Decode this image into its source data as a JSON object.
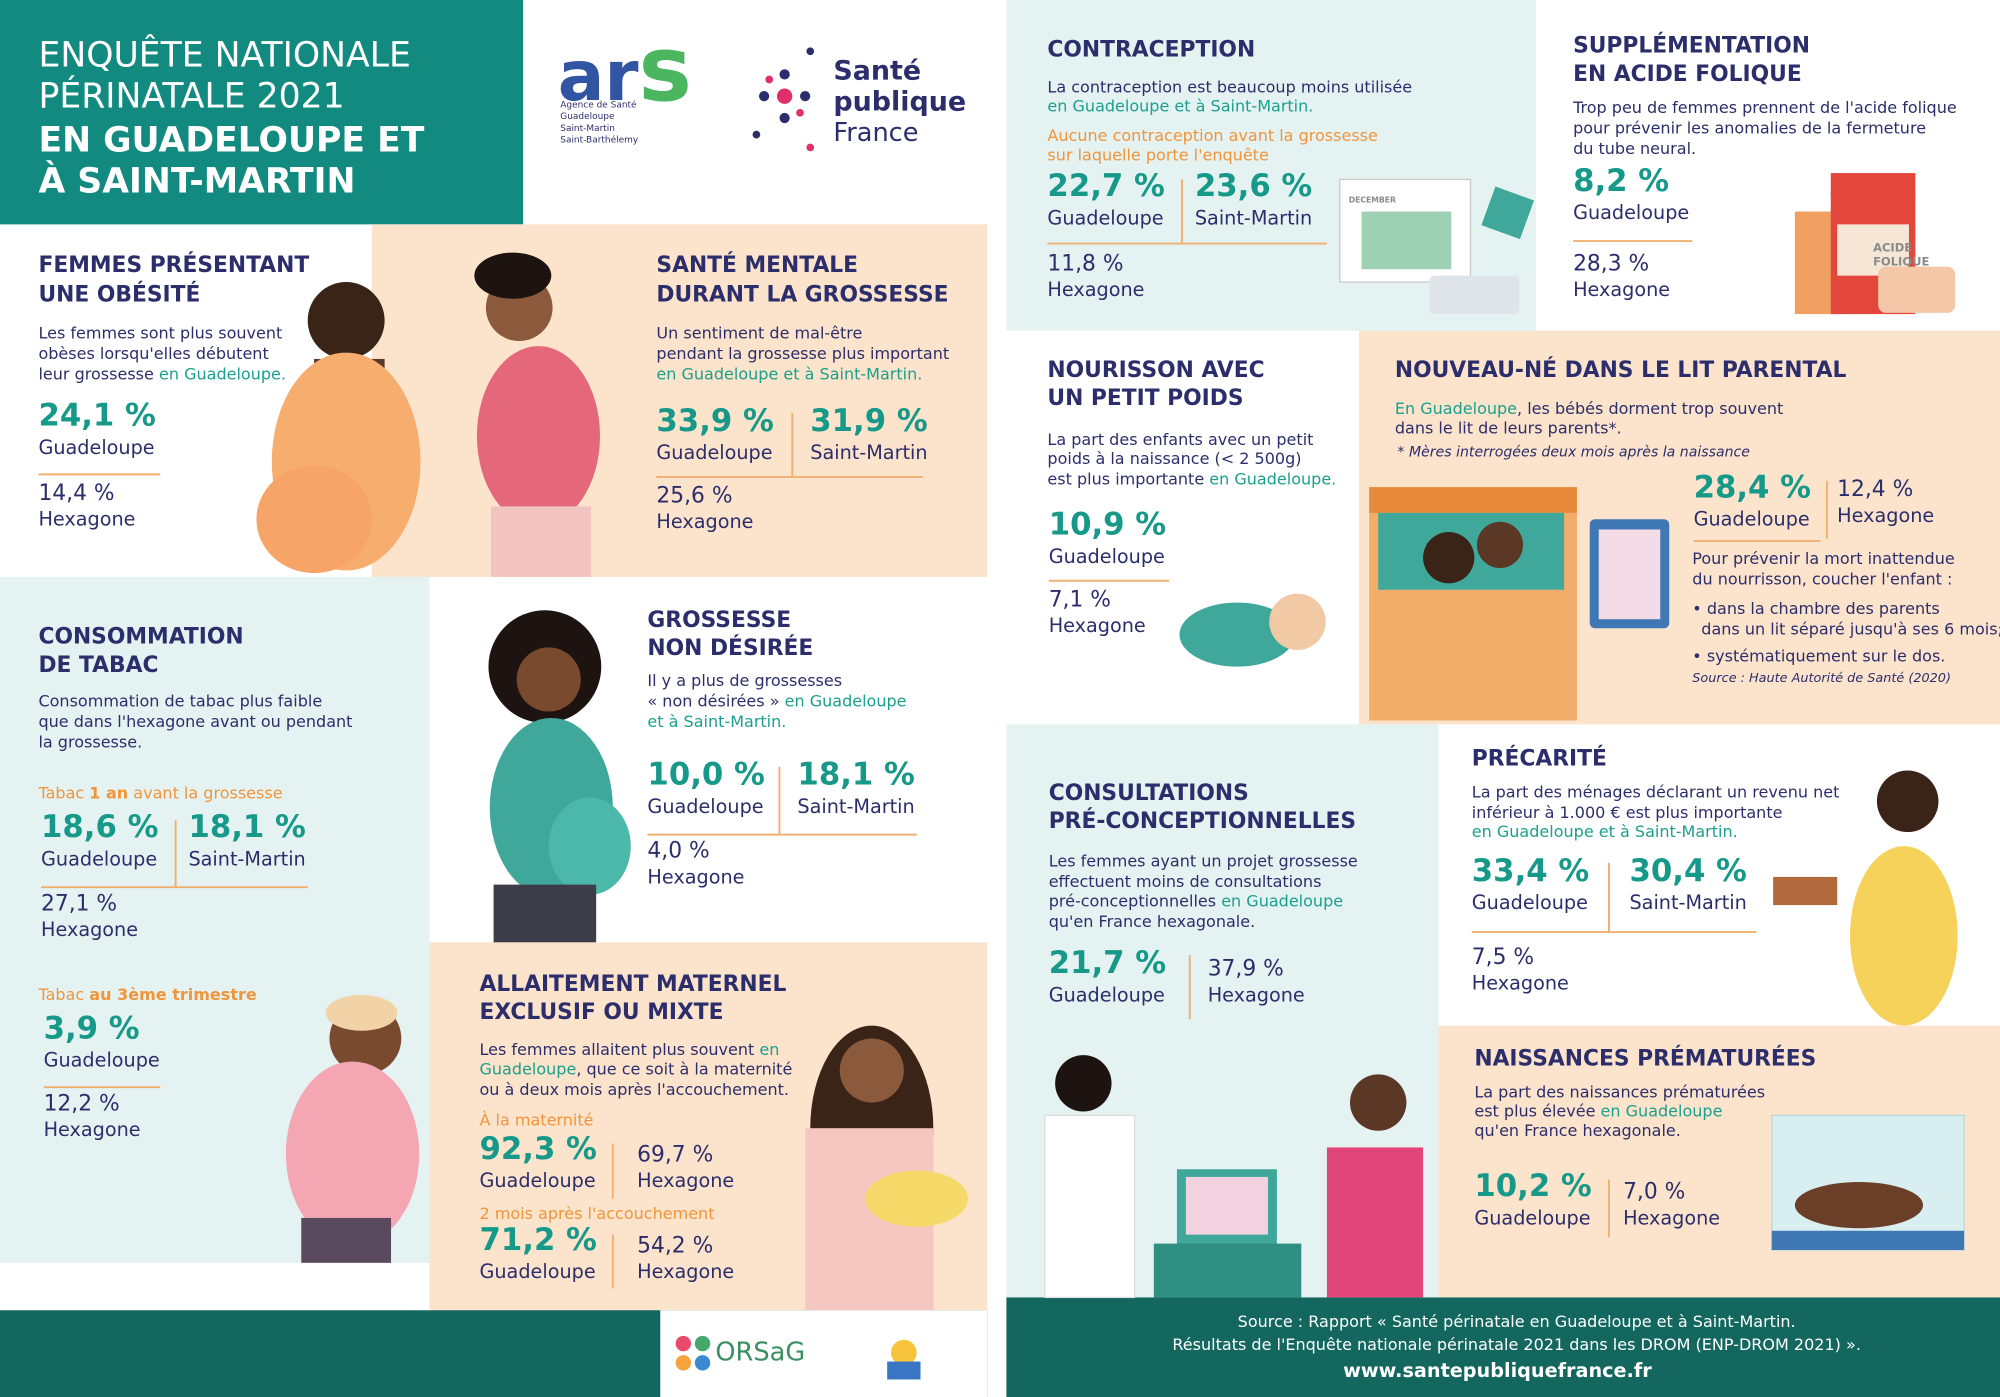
{
  "header": {
    "title": [
      "ENQUÊTE NATIONALE",
      "PÉRINATALE 2021",
      "EN GUADELOUPE ET",
      "À SAINT-MARTIN"
    ]
  },
  "logos": {
    "ars": {
      "letters": [
        "ar",
        "s"
      ],
      "lines": [
        "Agence de Santé",
        "Guadeloupe",
        "Saint-Martin",
        "Saint-Barthélemy"
      ]
    },
    "spf": [
      "Santé",
      "publique",
      "France"
    ],
    "orsag": "ORSaG"
  },
  "sections": [
    {
      "title": [
        "FEMMES PRÉSENTANT",
        "UNE OBÉSITÉ"
      ],
      "text": [
        [
          "Les femmes sont plus souvent"
        ],
        [
          "obèses lorsqu'elles débutent"
        ],
        [
          "leur grossesse ",
          {
            "text": "en Guadeloupe.",
            "highlight": true
          }
        ]
      ],
      "stats": [
        {
          "value": "24,1 %",
          "label": "Guadeloupe"
        },
        {
          "value": "14,4 %",
          "label": "Hexagone"
        }
      ]
    },
    {
      "title": [
        "SANTÉ MENTALE",
        "DURANT LA GROSSESSE"
      ],
      "text": [
        [
          "Un sentiment de mal-être"
        ],
        [
          "pendant la grossesse plus important"
        ],
        [
          {
            "text": "en Guadeloupe et à Saint-Martin.",
            "highlight": true
          }
        ]
      ],
      "stats": [
        {
          "value": "33,9 %",
          "label": "Guadeloupe"
        },
        {
          "value": "31,9 %",
          "label": "Saint-Martin"
        },
        {
          "value": "25,6 %",
          "label": "Hexagone"
        }
      ]
    },
    {
      "title": [
        "CONSOMMATION",
        "DE TABAC"
      ],
      "text": [
        [
          "Consommation de tabac plus faible"
        ],
        [
          "que dans l'hexagone avant ou pendant"
        ],
        [
          "la grossesse."
        ]
      ],
      "subheads": [
        [
          "Tabac ",
          {
            "text": "1 an",
            "bold": true
          },
          " avant la grossesse"
        ],
        [
          "Tabac ",
          {
            "text": "au 3ème trimestre",
            "bold": true
          }
        ]
      ],
      "stats": [
        {
          "value": "18,6 %",
          "label": "Guadeloupe"
        },
        {
          "value": "18,1 %",
          "label": "Saint-Martin"
        },
        {
          "value": "27,1 %",
          "label": "Hexagone"
        },
        {
          "value": "3,9 %",
          "label": "Guadeloupe"
        },
        {
          "value": "12,2 %",
          "label": "Hexagone"
        }
      ]
    },
    {
      "title": [
        "GROSSESSE",
        "NON DÉSIRÉE"
      ],
      "text": [
        [
          "Il y a plus de grossesses"
        ],
        [
          "« non désirées » ",
          {
            "text": "en Guadeloupe",
            "highlight": true
          }
        ],
        [
          {
            "text": "et à Saint-Martin.",
            "highlight": true
          }
        ]
      ],
      "stats": [
        {
          "value": "10,0 %",
          "label": "Guadeloupe"
        },
        {
          "value": "18,1 %",
          "label": "Saint-Martin"
        },
        {
          "value": "4,0 %",
          "label": "Hexagone"
        }
      ]
    },
    {
      "title": [
        "ALLAITEMENT MATERNEL",
        "EXCLUSIF OU MIXTE"
      ],
      "text": [
        [
          "Les femmes allaitent plus souvent ",
          {
            "text": "en",
            "highlight": true
          }
        ],
        [
          {
            "text": "Guadeloupe",
            "highlight": true
          },
          ", que ce soit à la maternité"
        ],
        [
          "ou à deux mois après l'accouchement."
        ]
      ],
      "subheads": [
        [
          "À la maternité"
        ],
        [
          "2 mois après l'accouchement"
        ]
      ],
      "stats": [
        {
          "value": "92,3 %",
          "label": "Guadeloupe"
        },
        {
          "value": "69,7 %",
          "label": "Hexagone"
        },
        {
          "value": "71,2 %",
          "label": "Guadeloupe"
        },
        {
          "value": "54,2 %",
          "label": "Hexagone"
        }
      ]
    },
    {
      "title": [
        "CONTRACEPTION"
      ],
      "text": [
        [
          "La contraception est beaucoup moins utilisée"
        ],
        [
          {
            "text": "en Guadeloupe et à Saint-Martin.",
            "highlight": true
          }
        ]
      ],
      "subheads": [
        [
          "Aucune contraception avant la grossesse"
        ],
        [
          "sur laquelle porte l'enquête"
        ]
      ],
      "stats": [
        {
          "value": "22,7 %",
          "label": "Guadeloupe"
        },
        {
          "value": "23,6 %",
          "label": "Saint-Martin"
        },
        {
          "value": "11,8 %",
          "label": "Hexagone"
        }
      ],
      "illustration_label": [
        "DECEMBER"
      ]
    },
    {
      "title": [
        "SUPPLÉMENTATION",
        "EN ACIDE FOLIQUE"
      ],
      "text": [
        [
          "Trop peu de femmes prennent de l'acide folique"
        ],
        [
          "pour prévenir les anomalies de la fermeture"
        ],
        [
          "du tube neural."
        ]
      ],
      "stats": [
        {
          "value": "8,2 %",
          "label": "Guadeloupe"
        },
        {
          "value": "28,3 %",
          "label": "Hexagone"
        }
      ],
      "illustration_label": [
        "ACIDE",
        "FOLIQUE"
      ]
    },
    {
      "title": [
        "NOURISSON AVEC",
        "UN PETIT POIDS"
      ],
      "text": [
        [
          "La part des enfants avec un petit"
        ],
        [
          "poids à la naissance (< 2 500g)"
        ],
        [
          "est plus importante ",
          {
            "text": "en Guadeloupe.",
            "highlight": true
          }
        ]
      ],
      "stats": [
        {
          "value": "10,9 %",
          "label": "Guadeloupe"
        },
        {
          "value": "7,1 %",
          "label": "Hexagone"
        }
      ]
    },
    {
      "title": [
        "NOUVEAU-NÉ DANS LE LIT PARENTAL"
      ],
      "text": [
        [
          {
            "text": "En Guadeloupe",
            "highlight": true
          },
          ", les bébés dorment trop souvent"
        ],
        [
          "dans le lit de leurs parents*."
        ]
      ],
      "notes": [
        [
          "* Mères interrogées deux mois après la naissance"
        ],
        [
          "Pour prévenir la mort inattendue"
        ],
        [
          "du nourrisson, coucher l'enfant :"
        ],
        [
          "• dans la chambre des parents"
        ],
        [
          "dans un lit séparé jusqu'à ses 6 mois;"
        ],
        [
          "• systématiquement sur le dos."
        ],
        [
          "Source : Haute Autorité de Santé (2020)"
        ]
      ],
      "stats": [
        {
          "value": "28,4 %",
          "label": "Guadeloupe"
        },
        {
          "value": "12,4 %",
          "label": "Hexagone"
        }
      ]
    },
    {
      "title": [
        "CONSULTATIONS",
        "PRÉ-CONCEPTIONNELLES"
      ],
      "text": [
        [
          "Les femmes ayant un projet grossesse"
        ],
        [
          "effectuent moins de consultations"
        ],
        [
          "pré-conceptionnelles ",
          {
            "text": "en Guadeloupe",
            "highlight": true
          }
        ],
        [
          "qu'en France hexagonale."
        ]
      ],
      "stats": [
        {
          "value": "21,7 %",
          "label": "Guadeloupe"
        },
        {
          "value": "37,9 %",
          "label": "Hexagone"
        }
      ]
    },
    {
      "title": [
        "PRÉCARITÉ"
      ],
      "text": [
        [
          "La part des ménages déclarant un revenu net"
        ],
        [
          "inférieur à 1.000 € est plus importante"
        ],
        [
          {
            "text": "en Guadeloupe et à Saint-Martin.",
            "highlight": true
          }
        ]
      ],
      "stats": [
        {
          "value": "33,4 %",
          "label": "Guadeloupe"
        },
        {
          "value": "30,4 %",
          "label": "Saint-Martin"
        },
        {
          "value": "7,5 %",
          "label": "Hexagone"
        }
      ]
    },
    {
      "title": [
        "NAISSANCES PRÉMATURÉES"
      ],
      "text": [
        [
          "La part des naissances prématurées"
        ],
        [
          "est plus élevée ",
          {
            "text": "en Guadeloupe",
            "highlight": true
          }
        ],
        [
          "qu'en France hexagonale."
        ]
      ],
      "stats": [
        {
          "value": "10,2 %",
          "label": "Guadeloupe"
        },
        {
          "value": "7,0 %",
          "label": "Hexagone"
        }
      ]
    }
  ],
  "footer": {
    "source": [
      "Source : Rapport « Santé périnatale en Guadeloupe et à Saint-Martin.",
      "Résultats de l'Enquête nationale périnatale 2021 dans les DROM (ENP-DROM 2021) »."
    ],
    "url": "www.santepubliquefrance.fr"
  }
}
